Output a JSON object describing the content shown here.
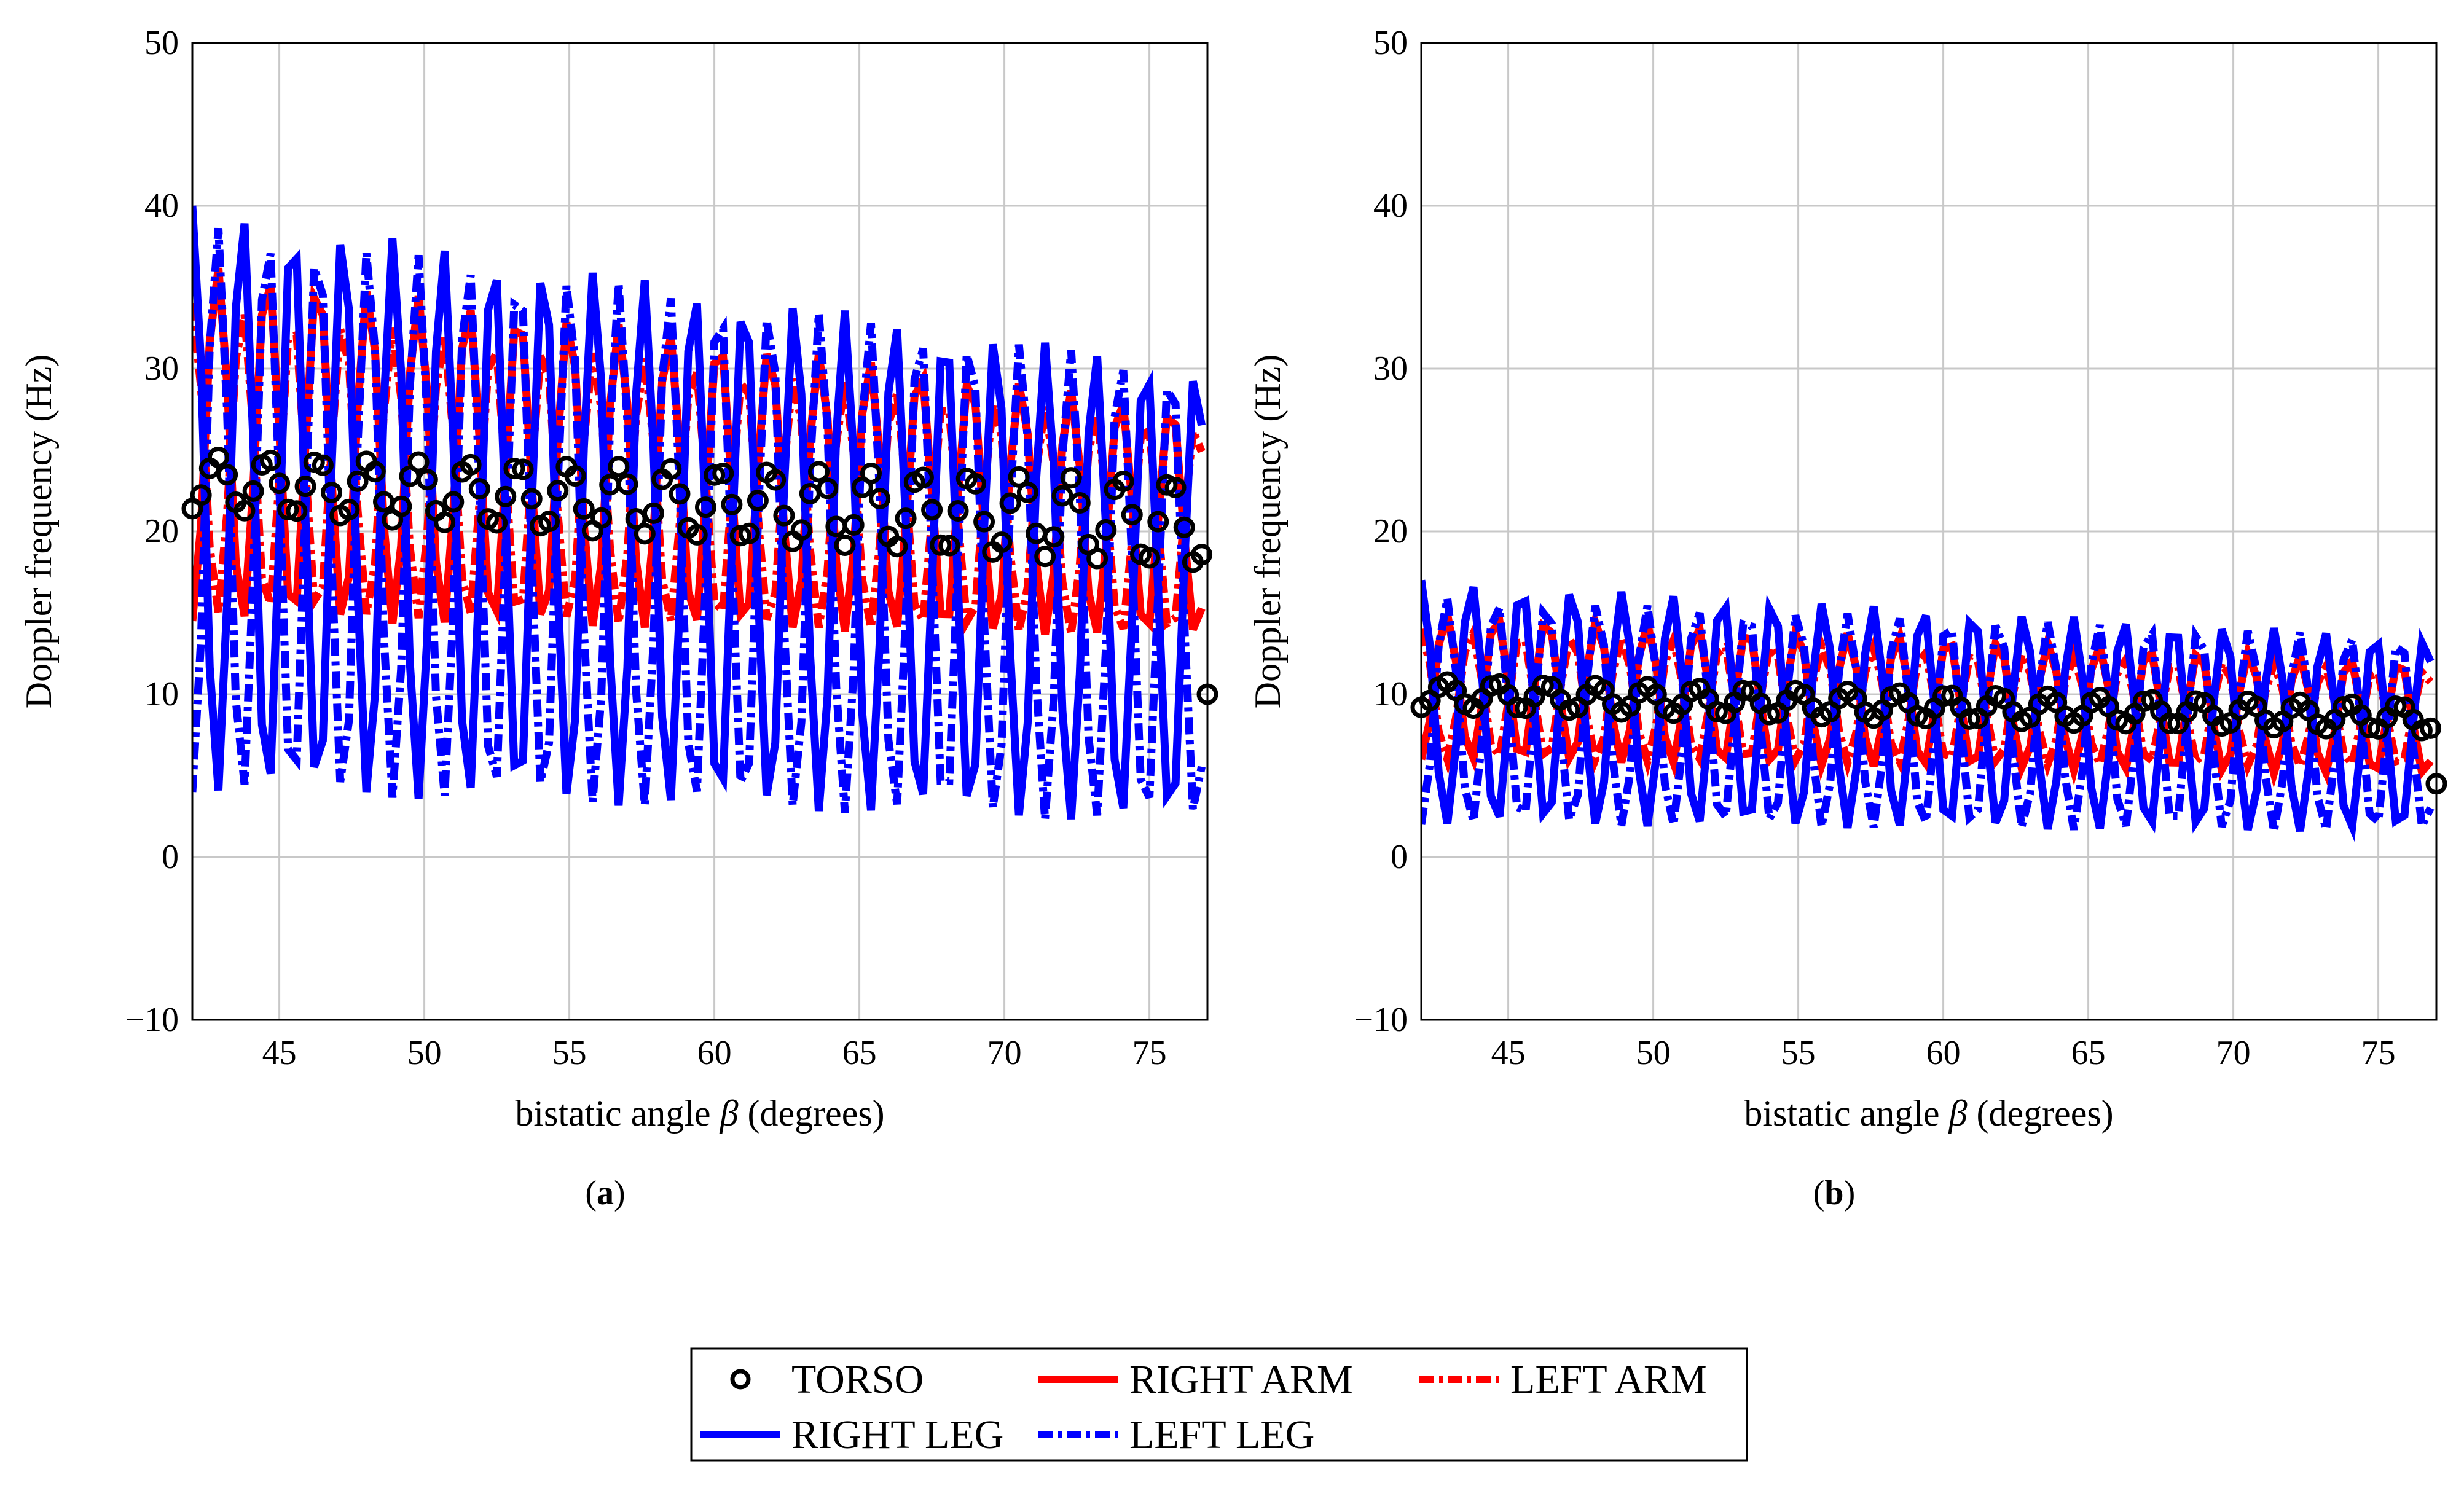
{
  "chart_data": [
    {
      "type": "line",
      "panel_label": "a",
      "xlabel_prefix": "bistatic angle ",
      "xlabel_symbol": "β",
      "xlabel_suffix": " (degrees)",
      "ylabel": "Doppler frequency (Hz)",
      "xlim": [
        42,
        77
      ],
      "ylim": [
        -10,
        50
      ],
      "xticks": [
        "45",
        "50",
        "55",
        "60",
        "65",
        "70",
        "75"
      ],
      "yticks": [
        "−10",
        "0",
        "10",
        "20",
        "30",
        "40",
        "50"
      ],
      "grid": true,
      "cycle_period_deg": 1.73,
      "sample_step_deg": 0.3,
      "series": [
        {
          "name": "TORSO",
          "style": "markers",
          "color": "#000000",
          "phase": 0.5,
          "center_start": 23.0,
          "center_end": 20.5,
          "amp_start": 1.6,
          "amp_end": 2.6,
          "end_point": [
            77,
            10
          ]
        },
        {
          "name": "RIGHT ARM",
          "style": "solid",
          "color": "#ff0000",
          "phase": 0.5,
          "center_start": 25.5,
          "center_end": 20.5,
          "amp_start": 11.0,
          "amp_end": 7.0
        },
        {
          "name": "LEFT ARM",
          "style": "dashdot",
          "color": "#ff0000",
          "phase": 0.0,
          "center_start": 24.5,
          "center_end": 20.0,
          "amp_start": 9.5,
          "amp_end": 6.5
        },
        {
          "name": "RIGHT LEG",
          "style": "solid",
          "color": "#0000ff",
          "phase": 0.0,
          "center_start": 22.0,
          "center_end": 16.0,
          "amp_start": 18.0,
          "amp_end": 14.0
        },
        {
          "name": "LEFT LEG",
          "style": "dashdot",
          "color": "#0000ff",
          "phase": 0.5,
          "center_start": 21.5,
          "center_end": 16.0,
          "amp_start": 17.5,
          "amp_end": 14.0
        }
      ]
    },
    {
      "type": "line",
      "panel_label": "b",
      "xlabel_prefix": "bistatic angle ",
      "xlabel_symbol": "β",
      "xlabel_suffix": " (degrees)",
      "ylabel": "Doppler frequency (Hz)",
      "xlim": [
        42,
        77
      ],
      "ylim": [
        -10,
        50
      ],
      "xticks": [
        "45",
        "50",
        "55",
        "60",
        "65",
        "70",
        "75"
      ],
      "yticks": [
        "−10",
        "0",
        "10",
        "20",
        "30",
        "40",
        "50"
      ],
      "grid": true,
      "cycle_period_deg": 1.73,
      "sample_step_deg": 0.3,
      "series": [
        {
          "name": "TORSO",
          "style": "markers",
          "color": "#000000",
          "phase": 0.5,
          "center_start": 10.0,
          "center_end": 8.5,
          "amp_start": 0.8,
          "amp_end": 0.8,
          "end_point": [
            77,
            4.5
          ]
        },
        {
          "name": "RIGHT ARM",
          "style": "solid",
          "color": "#ff0000",
          "phase": 0.5,
          "center_start": 10.5,
          "center_end": 8.5,
          "amp_start": 4.5,
          "amp_end": 3.5
        },
        {
          "name": "LEFT ARM",
          "style": "dashdot",
          "color": "#ff0000",
          "phase": 0.0,
          "center_start": 10.0,
          "center_end": 8.5,
          "amp_start": 4.0,
          "amp_end": 3.0
        },
        {
          "name": "RIGHT LEG",
          "style": "solid",
          "color": "#0000ff",
          "phase": 0.0,
          "center_start": 9.5,
          "center_end": 7.5,
          "amp_start": 7.5,
          "amp_end": 6.0
        },
        {
          "name": "LEFT LEG",
          "style": "dashdot",
          "color": "#0000ff",
          "phase": 0.5,
          "center_start": 9.0,
          "center_end": 7.5,
          "amp_start": 7.0,
          "amp_end": 6.0
        }
      ]
    }
  ],
  "legend": {
    "entries": [
      {
        "label": "TORSO",
        "style": "markers",
        "color": "#000000"
      },
      {
        "label": "RIGHT ARM",
        "style": "solid",
        "color": "#ff0000"
      },
      {
        "label": "LEFT ARM",
        "style": "dashdot",
        "color": "#ff0000"
      },
      {
        "label": "RIGHT LEG",
        "style": "solid",
        "color": "#0000ff"
      },
      {
        "label": "LEFT LEG",
        "style": "dashdot",
        "color": "#0000ff"
      }
    ]
  },
  "panel_labels": {
    "a": "a",
    "b": "b"
  }
}
